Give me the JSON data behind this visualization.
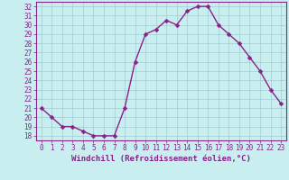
{
  "x": [
    0,
    1,
    2,
    3,
    4,
    5,
    6,
    7,
    8,
    9,
    10,
    11,
    12,
    13,
    14,
    15,
    16,
    17,
    18,
    19,
    20,
    21,
    22,
    23
  ],
  "y": [
    21,
    20,
    19,
    19,
    18.5,
    18,
    18,
    18,
    21,
    26,
    29,
    29.5,
    30.5,
    30,
    31.5,
    32,
    32,
    30,
    29,
    28,
    26.5,
    25,
    23,
    21.5
  ],
  "line_color": "#882288",
  "marker_color": "#882288",
  "bg_color": "#C8EEF0",
  "grid_color": "#A0CCD0",
  "xlabel": "Windchill (Refroidissement éolien,°C)",
  "ylim": [
    17.5,
    32.5
  ],
  "xlim": [
    -0.5,
    23.5
  ],
  "yticks": [
    18,
    19,
    20,
    21,
    22,
    23,
    24,
    25,
    26,
    27,
    28,
    29,
    30,
    31,
    32
  ],
  "xticks": [
    0,
    1,
    2,
    3,
    4,
    5,
    6,
    7,
    8,
    9,
    10,
    11,
    12,
    13,
    14,
    15,
    16,
    17,
    18,
    19,
    20,
    21,
    22,
    23
  ],
  "label_fontsize": 6.5,
  "tick_fontsize": 5.5,
  "line_width": 1.0,
  "marker_size": 2.5
}
